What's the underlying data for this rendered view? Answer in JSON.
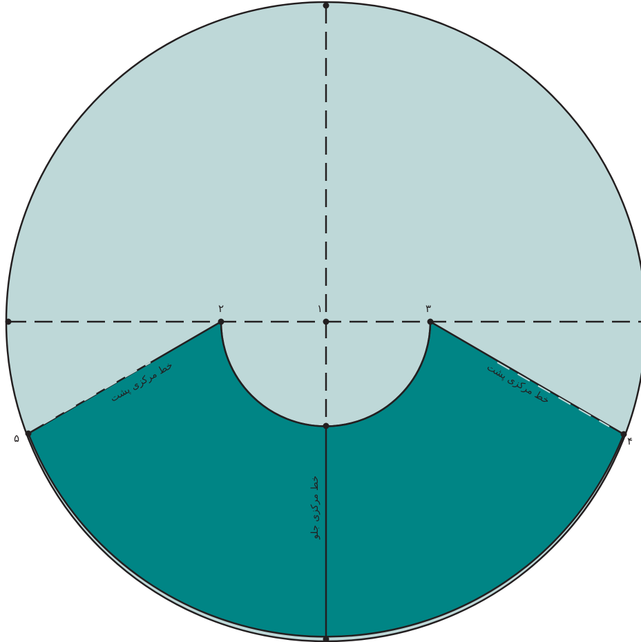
{
  "colors": {
    "light_region": "#bed8d8",
    "dark_region": "#008585",
    "stroke": "#231f20",
    "background": "#ffffff"
  },
  "points": {
    "p1": "۱",
    "p2": "۲",
    "p3": "۳",
    "p4": "۴",
    "p5": "۵"
  },
  "lines": {
    "back_center_left": "خط مرکزی پشت",
    "back_center_right": "خط مرکزی پشت",
    "front_center": "خط مرکزی جلو"
  }
}
